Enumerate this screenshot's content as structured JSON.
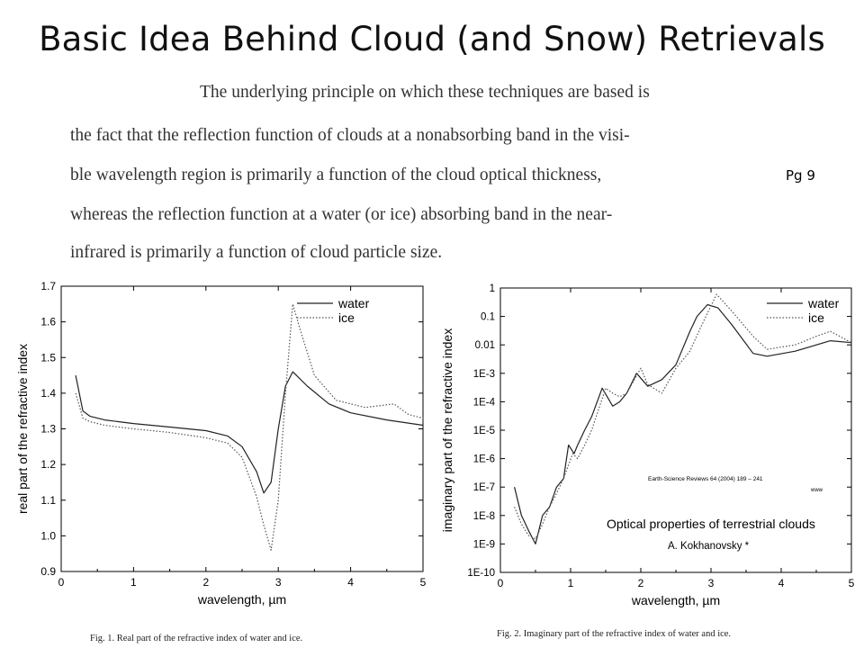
{
  "title": "Basic Idea Behind Cloud (and Snow) Retrievals",
  "paragraph": [
    "The underlying principle on which these techniques are based is",
    "the fact that the reflection function of clouds at a nonabsorbing band in the visi-",
    "ble wavelength region is primarily a function of the cloud optical thickness,",
    "whereas the reflection function at a water (or ice) absorbing band in the near-",
    "infrared is primarily a function of cloud particle size."
  ],
  "page_ref": "Pg 9",
  "fig1": {
    "caption": "Fig. 1. Real part of the refractive index of water and ice."
  },
  "fig2": {
    "caption": "Fig. 2. Imaginary part of the refractive index of water and ice.",
    "journal": "Earth-Science Reviews 64 (2004) 189 – 241",
    "logo": "www",
    "article_title": "Optical properties of terrestrial clouds",
    "author": "A. Kokhanovsky *"
  },
  "chart_data": [
    {
      "type": "line",
      "xlabel": "wavelength, µm",
      "ylabel": "real part of the refractive index",
      "xlim": [
        0,
        5
      ],
      "ylim": [
        0.9,
        1.7
      ],
      "xticks": [
        "0",
        "1",
        "2",
        "3",
        "4",
        "5"
      ],
      "yticks": [
        "0.9",
        "1.0",
        "1.1",
        "1.2",
        "1.3",
        "1.4",
        "1.5",
        "1.6",
        "1.7"
      ],
      "legend_position": "top-right",
      "series": [
        {
          "name": "water",
          "style": "solid",
          "x": [
            0.2,
            0.3,
            0.4,
            0.6,
            0.8,
            1.0,
            1.5,
            2.0,
            2.3,
            2.5,
            2.7,
            2.8,
            2.9,
            3.0,
            3.1,
            3.2,
            3.4,
            3.7,
            4.0,
            4.5,
            5.0
          ],
          "y": [
            1.45,
            1.35,
            1.335,
            1.325,
            1.32,
            1.315,
            1.305,
            1.295,
            1.28,
            1.25,
            1.18,
            1.12,
            1.15,
            1.3,
            1.42,
            1.46,
            1.42,
            1.37,
            1.345,
            1.325,
            1.31
          ]
        },
        {
          "name": "ice",
          "style": "dotted",
          "x": [
            0.2,
            0.3,
            0.4,
            0.6,
            0.8,
            1.0,
            1.5,
            2.0,
            2.3,
            2.5,
            2.7,
            2.8,
            2.9,
            3.0,
            3.1,
            3.2,
            3.3,
            3.5,
            3.8,
            4.2,
            4.6,
            4.8,
            5.0
          ],
          "y": [
            1.4,
            1.33,
            1.32,
            1.31,
            1.305,
            1.3,
            1.29,
            1.275,
            1.26,
            1.22,
            1.11,
            1.03,
            0.96,
            1.1,
            1.4,
            1.65,
            1.58,
            1.45,
            1.38,
            1.36,
            1.37,
            1.34,
            1.33
          ]
        }
      ]
    },
    {
      "type": "line",
      "xlabel": "wavelength, µm",
      "ylabel": "imaginary part of the refractive index",
      "xlim": [
        0,
        5
      ],
      "ylim": [
        1e-10,
        1
      ],
      "yscale": "log",
      "xticks": [
        "0",
        "1",
        "2",
        "3",
        "4",
        "5"
      ],
      "yticks": [
        "1E-10",
        "1E-9",
        "1E-8",
        "1E-7",
        "1E-6",
        "1E-5",
        "1E-4",
        "1E-3",
        "0.01",
        "0.1",
        "1"
      ],
      "legend_position": "top-right",
      "series": [
        {
          "name": "water",
          "style": "solid",
          "x": [
            0.2,
            0.3,
            0.4,
            0.5,
            0.6,
            0.7,
            0.8,
            0.9,
            0.97,
            1.05,
            1.1,
            1.2,
            1.3,
            1.45,
            1.6,
            1.7,
            1.8,
            1.94,
            2.1,
            2.3,
            2.5,
            2.7,
            2.8,
            2.95,
            3.1,
            3.3,
            3.6,
            3.8,
            4.2,
            4.7,
            5.0
          ],
          "y": [
            1e-07,
            1e-08,
            3e-09,
            1e-09,
            1e-08,
            2e-08,
            1e-07,
            2e-07,
            3e-06,
            1.5e-06,
            3e-06,
            1e-05,
            3e-05,
            0.0003,
            7e-05,
            0.0001,
            0.0002,
            0.001,
            0.00035,
            0.0006,
            0.002,
            0.03,
            0.1,
            0.26,
            0.2,
            0.05,
            0.005,
            0.004,
            0.006,
            0.014,
            0.012
          ]
        },
        {
          "name": "ice",
          "style": "dotted",
          "x": [
            0.2,
            0.3,
            0.4,
            0.5,
            0.6,
            0.7,
            0.8,
            0.9,
            1.03,
            1.1,
            1.2,
            1.3,
            1.5,
            1.6,
            1.7,
            1.8,
            2.0,
            2.1,
            2.3,
            2.5,
            2.7,
            2.85,
            3.08,
            3.3,
            3.6,
            3.8,
            4.2,
            4.5,
            4.7,
            5.0
          ],
          "y": [
            2e-08,
            5e-09,
            2e-09,
            1.5e-09,
            5e-09,
            2e-08,
            6e-08,
            2e-07,
            1.5e-06,
            1e-06,
            3e-06,
            1e-05,
            0.0003,
            0.0002,
            0.00015,
            0.0002,
            0.0015,
            0.0004,
            0.0002,
            0.0015,
            0.006,
            0.04,
            0.6,
            0.15,
            0.02,
            0.007,
            0.01,
            0.02,
            0.03,
            0.012
          ]
        }
      ]
    }
  ]
}
